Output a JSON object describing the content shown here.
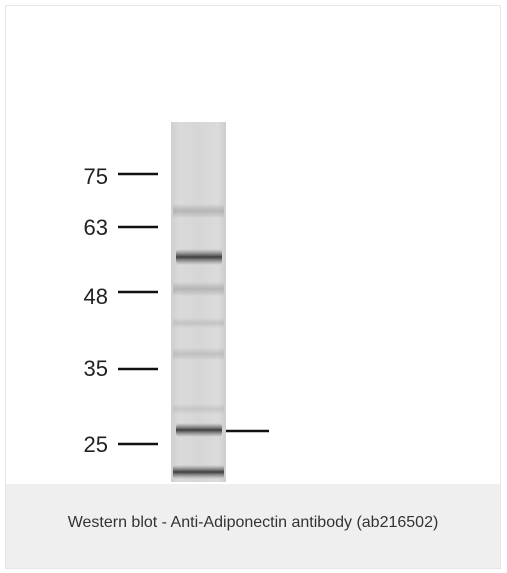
{
  "figure": {
    "markers": [
      {
        "label": "75"
      },
      {
        "label": "63"
      },
      {
        "label": "48"
      },
      {
        "label": "35"
      },
      {
        "label": "25"
      }
    ]
  },
  "caption": {
    "text": "Western blot - Anti-Adiponectin antibody (ab216502)"
  }
}
